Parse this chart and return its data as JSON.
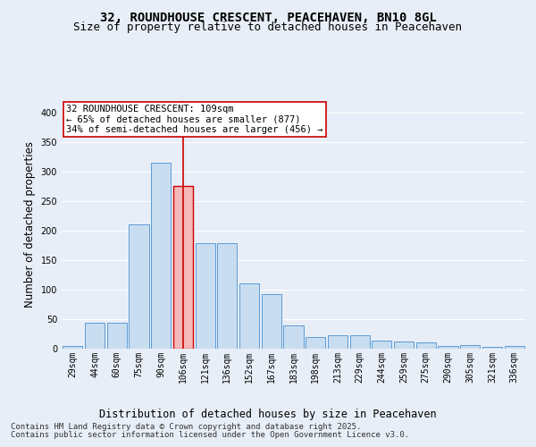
{
  "title_line1": "32, ROUNDHOUSE CRESCENT, PEACEHAVEN, BN10 8GL",
  "title_line2": "Size of property relative to detached houses in Peacehaven",
  "xlabel": "Distribution of detached houses by size in Peacehaven",
  "ylabel": "Number of detached properties",
  "categories": [
    "29sqm",
    "44sqm",
    "60sqm",
    "75sqm",
    "90sqm",
    "106sqm",
    "121sqm",
    "136sqm",
    "152sqm",
    "167sqm",
    "183sqm",
    "198sqm",
    "213sqm",
    "229sqm",
    "244sqm",
    "259sqm",
    "275sqm",
    "290sqm",
    "305sqm",
    "321sqm",
    "336sqm"
  ],
  "values": [
    5,
    44,
    44,
    210,
    315,
    275,
    178,
    178,
    110,
    93,
    40,
    20,
    22,
    22,
    14,
    12,
    10,
    5,
    6,
    3,
    4
  ],
  "highlight_index": 5,
  "bar_color": "#c9ddf0",
  "bar_edge_color": "#5b9bd5",
  "highlight_bar_color": "#f4b9b9",
  "highlight_bar_edge_color": "#cc0000",
  "vline_color": "#cc0000",
  "annotation_text": "32 ROUNDHOUSE CRESCENT: 109sqm\n← 65% of detached houses are smaller (877)\n34% of semi-detached houses are larger (456) →",
  "annotation_box_color": "#ffffff",
  "annotation_box_edge_color": "#cc0000",
  "ylim": [
    0,
    420
  ],
  "yticks": [
    0,
    50,
    100,
    150,
    200,
    250,
    300,
    350,
    400
  ],
  "background_color": "#e8eef7",
  "plot_bg_color": "#e8eef7",
  "grid_color": "#ffffff",
  "footer_line1": "Contains HM Land Registry data © Crown copyright and database right 2025.",
  "footer_line2": "Contains public sector information licensed under the Open Government Licence v3.0.",
  "title_fontsize": 10,
  "subtitle_fontsize": 9,
  "axis_label_fontsize": 8.5,
  "tick_fontsize": 7,
  "annotation_fontsize": 7.5,
  "footer_fontsize": 6.5
}
